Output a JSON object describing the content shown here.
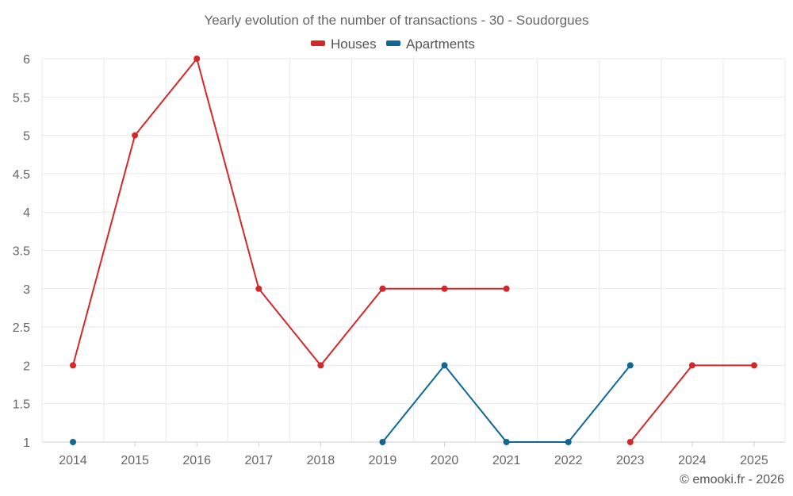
{
  "chart_data": {
    "type": "line",
    "title": "Yearly evolution of the number of transactions - 30 - Soudorgues",
    "categories": [
      "2014",
      "2015",
      "2016",
      "2017",
      "2018",
      "2019",
      "2020",
      "2021",
      "2022",
      "2023",
      "2024",
      "2025"
    ],
    "series": [
      {
        "name": "Houses",
        "color": "#d62728",
        "values": [
          2,
          5,
          6,
          3,
          2,
          3,
          3,
          3,
          null,
          1,
          2,
          2
        ]
      },
      {
        "name": "Apartments",
        "color": "#0d6797",
        "values": [
          1,
          null,
          null,
          null,
          null,
          1,
          2,
          1,
          1,
          2,
          null,
          null
        ]
      }
    ],
    "yticks": [
      "1",
      "1.5",
      "2",
      "2.5",
      "3",
      "3.5",
      "4",
      "4.5",
      "5",
      "5.5",
      "6"
    ],
    "ylim": [
      1,
      6
    ],
    "xlabel": "",
    "ylabel": "",
    "grid": true,
    "legend_position": "top-center"
  },
  "credit": "© emooki.fr - 2026"
}
